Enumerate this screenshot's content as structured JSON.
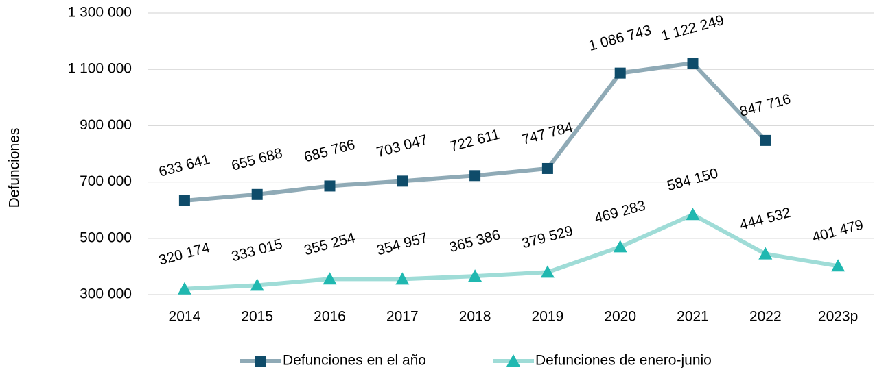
{
  "chart_data": {
    "type": "line",
    "y_label": "Defunciones",
    "categories": [
      "2014",
      "2015",
      "2016",
      "2017",
      "2018",
      "2019",
      "2020",
      "2021",
      "2022",
      "2023p"
    ],
    "series": [
      {
        "name": "Defunciones en el año",
        "color": "#8faab6",
        "marker_color": "#0f4c6a",
        "marker": "square",
        "values": [
          633641,
          655688,
          685766,
          703047,
          722611,
          747784,
          1086743,
          1122249,
          847716,
          null
        ],
        "value_labels": [
          "633 641",
          "655 688",
          "685 766",
          "703 047",
          "722 611",
          "747 784",
          "1 086 743",
          "1 122 249",
          "847 716",
          null
        ]
      },
      {
        "name": "Defunciones de enero-junio",
        "color": "#9fdcd7",
        "marker_color": "#20b8b0",
        "marker": "triangle",
        "values": [
          320174,
          333015,
          355254,
          354957,
          365386,
          379529,
          469283,
          584150,
          444532,
          401479
        ],
        "value_labels": [
          "320 174",
          "333 015",
          "355 254",
          "354 957",
          "365 386",
          "379 529",
          "469 283",
          "584 150",
          "444 532",
          "401 479"
        ]
      }
    ],
    "ylim": [
      300000,
      1300000
    ],
    "yticks": [
      {
        "value": 300000,
        "label": "300 000"
      },
      {
        "value": 500000,
        "label": "500 000"
      },
      {
        "value": 700000,
        "label": "700 000"
      },
      {
        "value": 900000,
        "label": "900 000"
      },
      {
        "value": 1100000,
        "label": "1 100 000"
      },
      {
        "value": 1300000,
        "label": "1 300 000"
      }
    ],
    "grid": true,
    "legend": "bottom"
  }
}
